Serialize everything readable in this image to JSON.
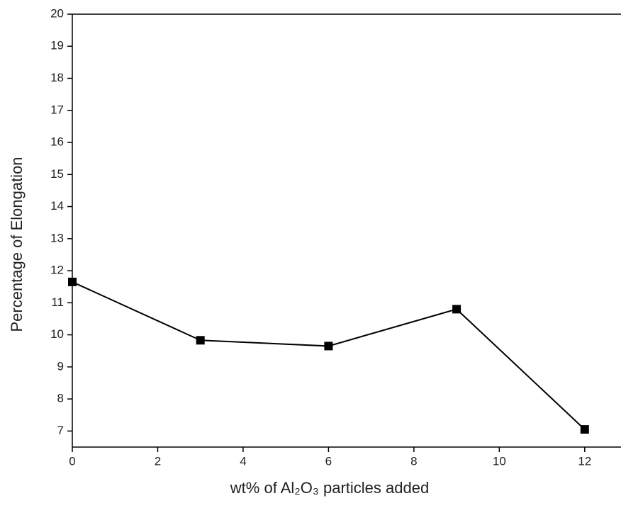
{
  "chart_data": {
    "type": "line",
    "x_label": "wt% of Al₂O₃ particles added",
    "y_label": "Percentage of Elongation",
    "x": [
      0,
      3,
      6,
      9,
      12
    ],
    "series": [
      {
        "name": "Elongation",
        "color": "#000000",
        "values": [
          11.65,
          9.83,
          9.65,
          10.8,
          7.05
        ]
      }
    ],
    "xlim": [
      0,
      12.85
    ],
    "xticks": [
      0,
      2,
      4,
      6,
      8,
      10,
      12
    ],
    "ylim": [
      6.5,
      20
    ],
    "yticks": [
      7,
      8,
      9,
      10,
      11,
      12,
      13,
      14,
      15,
      16,
      17,
      18,
      19,
      20
    ],
    "grid": false
  }
}
